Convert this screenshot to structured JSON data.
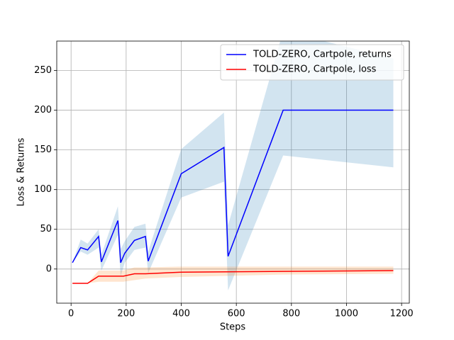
{
  "chart_data": {
    "type": "line",
    "xlabel": "Steps",
    "ylabel": "Loss & Returns",
    "xlim": [
      -52,
      1228
    ],
    "ylim": [
      -43,
      287
    ],
    "xticks": [
      0,
      200,
      400,
      600,
      800,
      1000,
      1200
    ],
    "yticks": [
      0,
      50,
      100,
      150,
      200,
      250
    ],
    "grid": true,
    "legend": "upper right",
    "series": [
      {
        "name": "TOLD-ZERO, Cartpole, returns",
        "color": "#0000ff",
        "band_color": "#1f77b4",
        "x": [
          5,
          35,
          60,
          100,
          110,
          170,
          180,
          195,
          230,
          270,
          280,
          400,
          555,
          570,
          770,
          1170
        ],
        "values": [
          8,
          27,
          24,
          41,
          9,
          61,
          8,
          20,
          36,
          41,
          10,
          120,
          153,
          16,
          200,
          200
        ],
        "upper": [
          8,
          37,
          32,
          50,
          18,
          79,
          25,
          35,
          53,
          57,
          22,
          151,
          197,
          55,
          300,
          265
        ],
        "lower": [
          8,
          22,
          18,
          27,
          -2,
          43,
          -9,
          8,
          24,
          27,
          -5,
          90,
          110,
          -27,
          143,
          128
        ]
      },
      {
        "name": "TOLD-ZERO, Cartpole, loss",
        "color": "#ff0000",
        "band_color": "#ff7f0e",
        "x": [
          5,
          60,
          100,
          190,
          230,
          270,
          400,
          770,
          1170
        ],
        "values": [
          -18,
          -18,
          -9,
          -9,
          -6,
          -6,
          -4,
          -3,
          -2
        ],
        "upper": [
          -18,
          -18,
          -2,
          -2,
          2,
          2,
          3,
          3,
          3
        ],
        "lower": [
          -18,
          -18,
          -16,
          -16,
          -14,
          -12,
          -10,
          -7,
          -6
        ]
      }
    ]
  }
}
